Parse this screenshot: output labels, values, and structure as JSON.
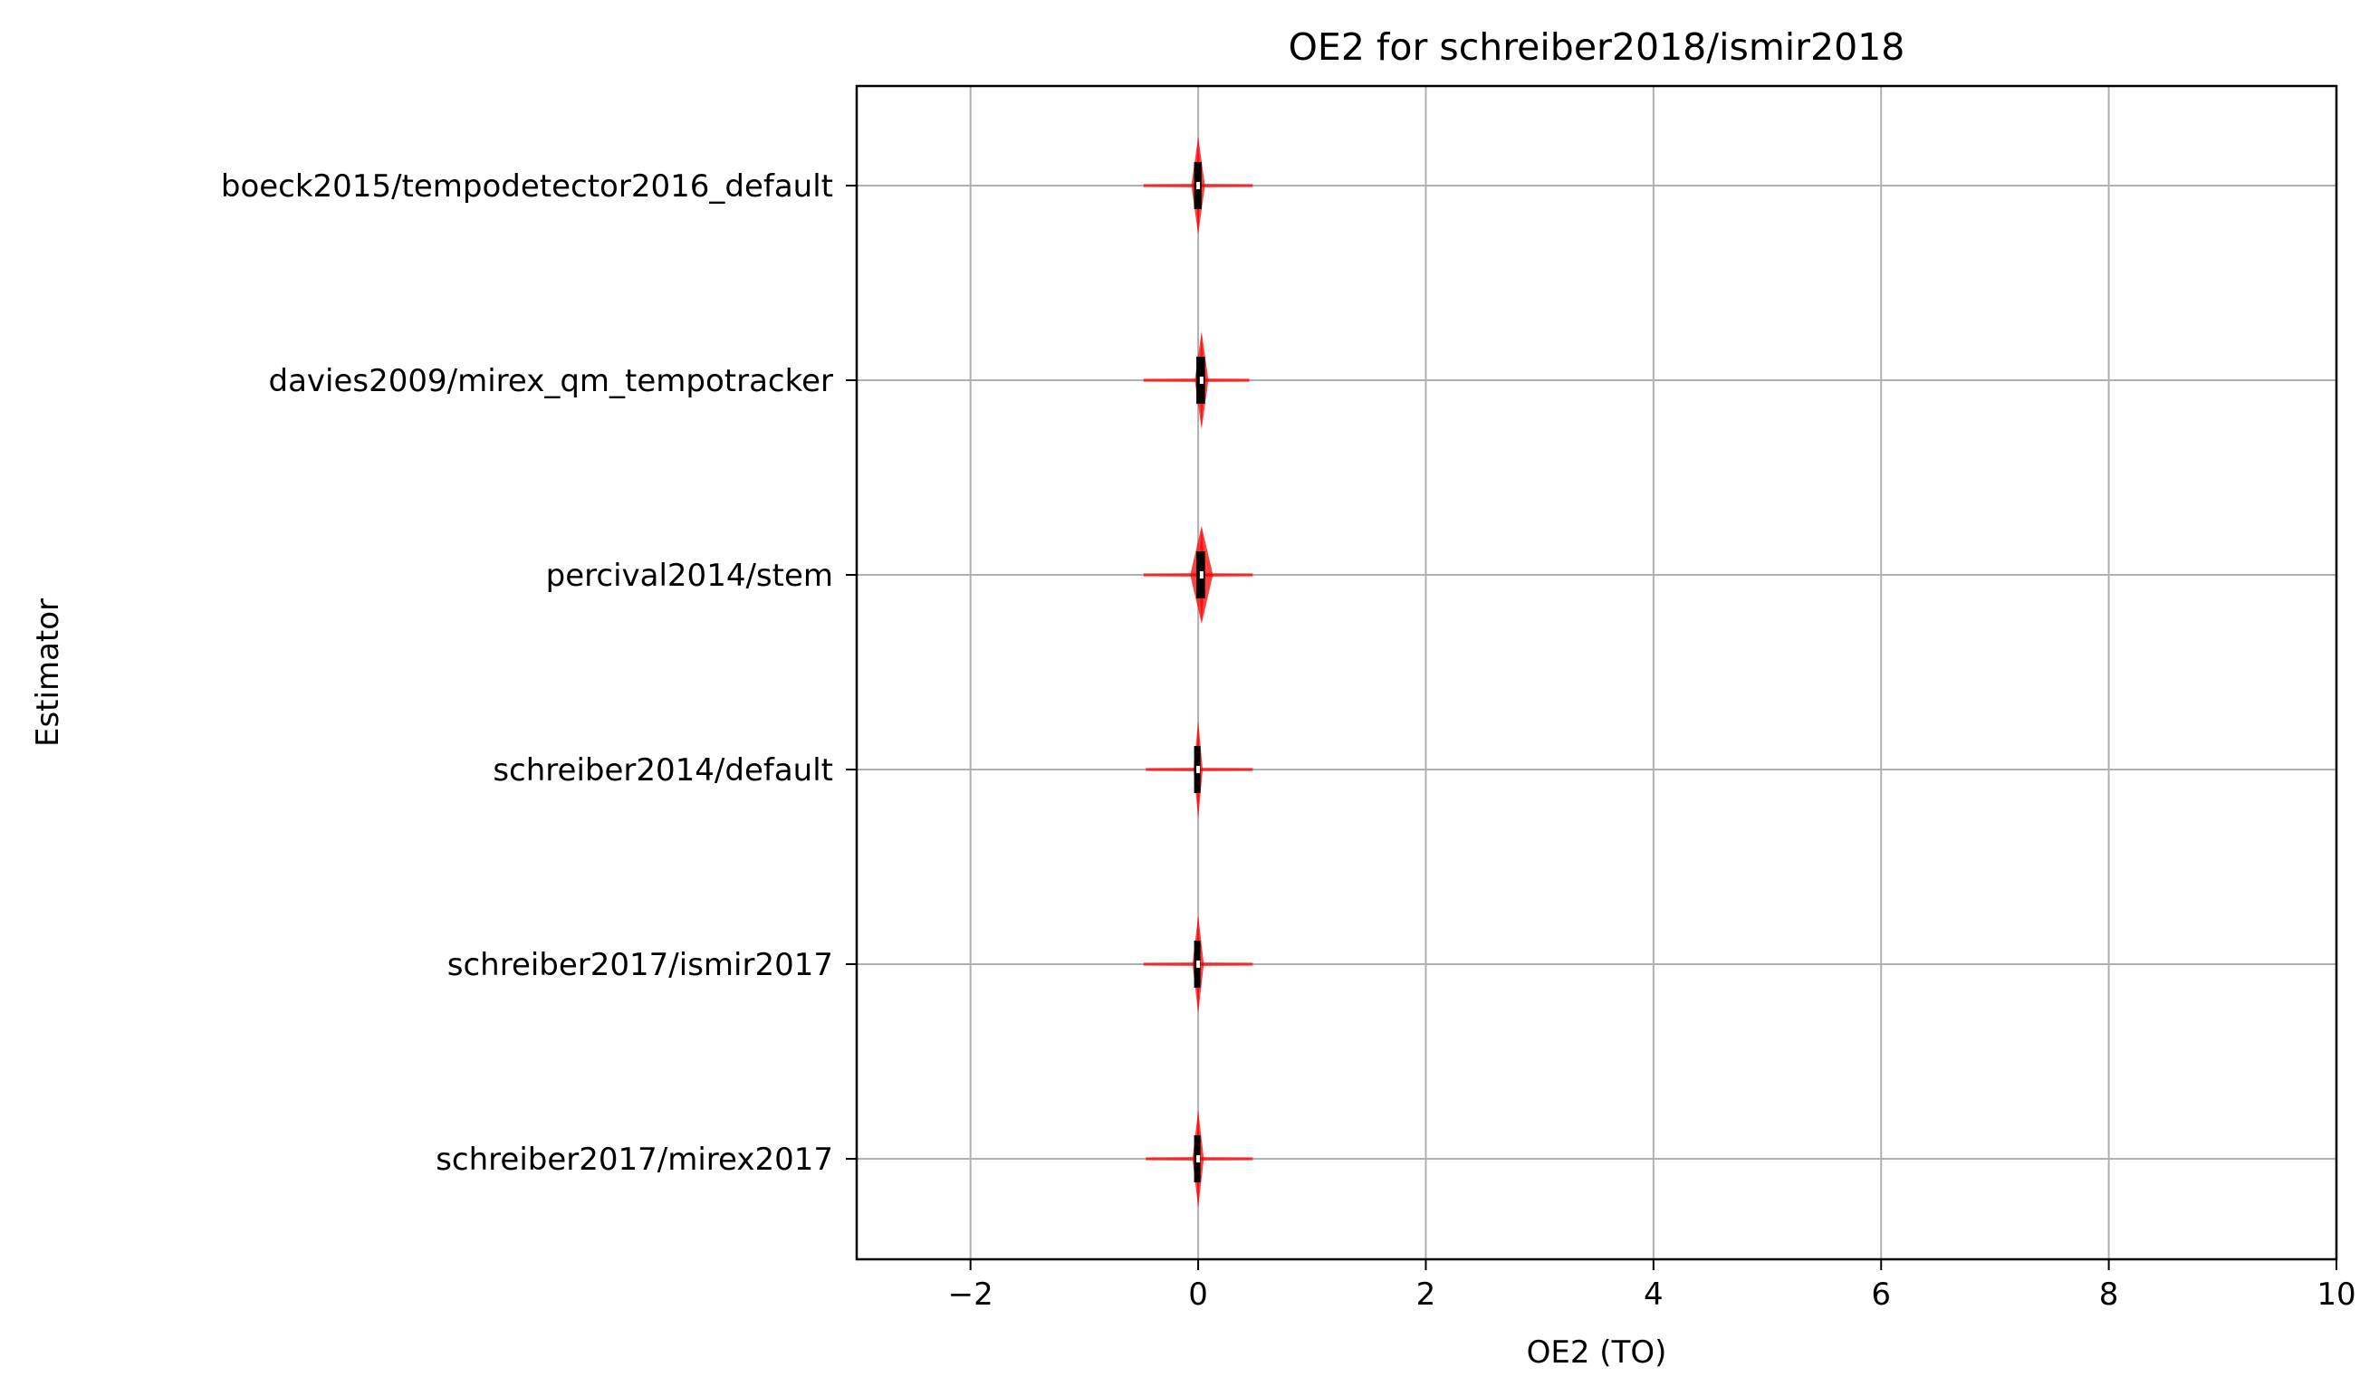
{
  "chart_data": {
    "type": "violin",
    "title": "OE2 for schreiber2018/ismir2018",
    "xlabel": "OE2 (TO)",
    "ylabel": "Estimator",
    "xlim": [
      -3,
      10
    ],
    "xticks": [
      -2,
      0,
      2,
      4,
      6,
      8,
      10
    ],
    "xtick_labels": [
      "−2",
      "0",
      "2",
      "4",
      "6",
      "8",
      "10"
    ],
    "grid": true,
    "colors": {
      "violin": "#ff0000",
      "box": "#000000",
      "grid": "#b0b0b0"
    },
    "categories": [
      "boeck2015/tempodetector2016_default",
      "davies2009/mirex_qm_tempotracker",
      "percival2014/stem",
      "schreiber2014/default",
      "schreiber2017/ismir2017",
      "schreiber2017/mirex2017"
    ],
    "series": [
      {
        "name": "boeck2015/tempodetector2016_default",
        "min": -0.48,
        "q1": -0.02,
        "median": 0.0,
        "q3": 0.03,
        "max": 0.48,
        "peak_width": 0.12
      },
      {
        "name": "davies2009/mirex_qm_tempotracker",
        "min": -0.48,
        "q1": 0.0,
        "median": 0.03,
        "q3": 0.06,
        "max": 0.45,
        "peak_width": 0.12
      },
      {
        "name": "percival2014/stem",
        "min": -0.48,
        "q1": 0.0,
        "median": 0.03,
        "q3": 0.06,
        "max": 0.48,
        "peak_width": 0.2
      },
      {
        "name": "schreiber2014/default",
        "min": -0.46,
        "q1": -0.02,
        "median": 0.0,
        "q3": 0.02,
        "max": 0.48,
        "peak_width": 0.08
      },
      {
        "name": "schreiber2017/ismir2017",
        "min": -0.48,
        "q1": -0.02,
        "median": 0.0,
        "q3": 0.02,
        "max": 0.48,
        "peak_width": 0.1
      },
      {
        "name": "schreiber2017/mirex2017",
        "min": -0.46,
        "q1": -0.02,
        "median": 0.0,
        "q3": 0.02,
        "max": 0.48,
        "peak_width": 0.1
      }
    ]
  }
}
